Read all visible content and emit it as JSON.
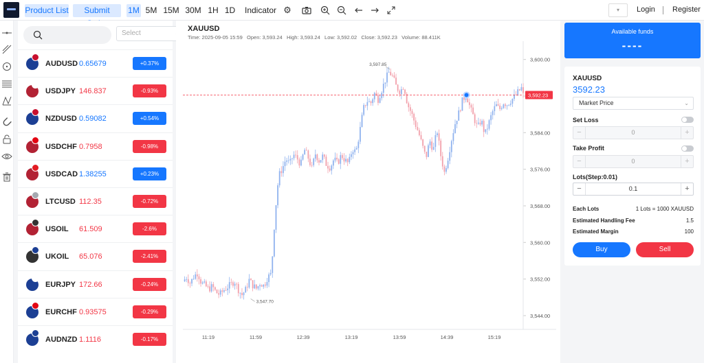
{
  "colors": {
    "accent": "#1677ff",
    "up": "#1677ff",
    "down": "#f23645",
    "up_candle": "#8fb2ee",
    "down_candle": "#f2a0ab",
    "price_line": "#f23645"
  },
  "toolbar": {
    "product_list": "Product List",
    "submit_order": "Submit Order",
    "intervals": [
      "1M",
      "5M",
      "15M",
      "30M",
      "1H",
      "1D"
    ],
    "active_interval": "1M",
    "indicator": "Indicator",
    "icons": [
      "settings-icon",
      "camera-icon",
      "zoom-in-icon",
      "zoom-out-icon",
      "arrow-left-icon",
      "arrow-right-icon",
      "fullscreen-icon"
    ],
    "login": "Login",
    "register": "Register"
  },
  "tools": [
    "horizontal-line-icon",
    "trend-line-icon",
    "circle-icon",
    "parallel-lines-icon",
    "pattern-icon",
    "magnet-icon",
    "lock-icon",
    "eye-icon",
    "trash-icon"
  ],
  "symbol_list": {
    "select_placeholder": "Select",
    "items": [
      {
        "symbol": "AUDUSD",
        "price": "0.65679",
        "change": "+0.37%",
        "dir": "up",
        "flag": [
          "#1c3f94",
          "#c8102e"
        ]
      },
      {
        "symbol": "USDJPY",
        "price": "146.837",
        "change": "-0.93%",
        "dir": "down",
        "flag": [
          "#b22234",
          "#ffffff"
        ]
      },
      {
        "symbol": "NZDUSD",
        "price": "0.59082",
        "change": "+0.54%",
        "dir": "up",
        "flag": [
          "#1c3f94",
          "#c8102e"
        ]
      },
      {
        "symbol": "USDCHF",
        "price": "0.7958",
        "change": "-0.98%",
        "dir": "down",
        "flag": [
          "#b22234",
          "#e30613"
        ]
      },
      {
        "symbol": "USDCAD",
        "price": "1.38255",
        "change": "+0.23%",
        "dir": "up",
        "flag": [
          "#b22234",
          "#e31b23"
        ]
      },
      {
        "symbol": "LTCUSD",
        "price": "112.35",
        "change": "-0.72%",
        "dir": "down",
        "flag": [
          "#b22234",
          "#a5a9b0"
        ]
      },
      {
        "symbol": "USOIL",
        "price": "61.509",
        "change": "-2.6%",
        "dir": "down",
        "flag": [
          "#b22234",
          "#333333"
        ]
      },
      {
        "symbol": "UKOIL",
        "price": "65.076",
        "change": "-2.41%",
        "dir": "down",
        "flag": [
          "#333333",
          "#1c3f94"
        ]
      },
      {
        "symbol": "EURJPY",
        "price": "172.66",
        "change": "-0.24%",
        "dir": "down",
        "flag": [
          "#1c3f94",
          "#ffffff"
        ]
      },
      {
        "symbol": "EURCHF",
        "price": "0.93575",
        "change": "-0.29%",
        "dir": "down",
        "flag": [
          "#1c3f94",
          "#e30613"
        ]
      },
      {
        "symbol": "AUDNZD",
        "price": "1.1116",
        "change": "-0.17%",
        "dir": "down",
        "flag": [
          "#1c3f94",
          "#1c3f94"
        ]
      }
    ]
  },
  "chart": {
    "symbol": "XAUUSD",
    "ohlc_line": "Time: 2025-09-05 15:59   Open: 3,593.24   High: 3,593.24   Low: 3,592.02   Close: 3,592.23   Volume: 88.411K",
    "current_price_label": "3,592.23",
    "max_label": "3,597.85",
    "min_label": "3,547.70"
  },
  "chart_data": {
    "type": "candlestick",
    "title": "XAUUSD",
    "x_ticks": [
      "11:19",
      "11:59",
      "12:39",
      "13:19",
      "13:59",
      "14:39",
      "15:19"
    ],
    "y_ticks": [
      3544,
      3552,
      3560,
      3568,
      3576,
      3584,
      3592,
      3600
    ],
    "y_tick_labels": [
      "3,544.00",
      "3,552.00",
      "3,560.00",
      "3,568.00",
      "3,576.00",
      "3,584.00",
      "3,592.00",
      "3,600.00"
    ],
    "ylim": [
      3542.5,
      3602.5
    ],
    "current_price": 3592.23,
    "max_point": {
      "value": 3597.85,
      "time": "13:58"
    },
    "min_point": {
      "value": 3547.7,
      "time": "11:48"
    },
    "close_path": [
      [
        0,
        3551.5
      ],
      [
        5,
        3552.4
      ],
      [
        10,
        3551.1
      ],
      [
        15,
        3552.6
      ],
      [
        20,
        3553.4
      ],
      [
        25,
        3551.2
      ],
      [
        30,
        3550.6
      ],
      [
        35,
        3549.8
      ],
      [
        40,
        3550.4
      ],
      [
        45,
        3549.1
      ],
      [
        50,
        3548.6
      ],
      [
        55,
        3549.5
      ],
      [
        60,
        3550.2
      ],
      [
        65,
        3550.8
      ],
      [
        70,
        3551.6
      ],
      [
        75,
        3549.8
      ],
      [
        80,
        3548.5
      ],
      [
        85,
        3549.6
      ],
      [
        90,
        3551.8
      ],
      [
        95,
        3550.6
      ],
      [
        100,
        3549.9
      ],
      [
        105,
        3551.2
      ],
      [
        110,
        3550.5
      ],
      [
        115,
        3552.4
      ],
      [
        120,
        3553.1
      ],
      [
        125,
        3566.0
      ],
      [
        130,
        3574.5
      ],
      [
        135,
        3576.2
      ],
      [
        140,
        3578.3
      ],
      [
        145,
        3577.1
      ],
      [
        150,
        3579.2
      ],
      [
        155,
        3578.4
      ],
      [
        160,
        3577.0
      ],
      [
        165,
        3580.3
      ],
      [
        170,
        3578.6
      ],
      [
        175,
        3576.2
      ],
      [
        180,
        3579.4
      ],
      [
        185,
        3577.8
      ],
      [
        190,
        3578.9
      ],
      [
        195,
        3577.0
      ],
      [
        200,
        3576.4
      ],
      [
        205,
        3578.2
      ],
      [
        210,
        3577.3
      ],
      [
        215,
        3579.1
      ],
      [
        220,
        3578.0
      ],
      [
        225,
        3577.2
      ],
      [
        230,
        3580.5
      ],
      [
        235,
        3579.7
      ],
      [
        240,
        3584.1
      ],
      [
        245,
        3589.2
      ],
      [
        250,
        3591.0
      ],
      [
        255,
        3590.4
      ],
      [
        260,
        3592.6
      ],
      [
        265,
        3591.3
      ],
      [
        270,
        3593.4
      ],
      [
        275,
        3595.6
      ],
      [
        280,
        3597.3
      ],
      [
        285,
        3596.2
      ],
      [
        290,
        3593.9
      ],
      [
        295,
        3593.0
      ],
      [
        300,
        3594.3
      ],
      [
        305,
        3590.2
      ],
      [
        310,
        3588.4
      ],
      [
        315,
        3586.1
      ],
      [
        320,
        3584.0
      ],
      [
        325,
        3581.2
      ],
      [
        330,
        3578.5
      ],
      [
        335,
        3582.3
      ],
      [
        340,
        3580.2
      ],
      [
        345,
        3584.6
      ],
      [
        350,
        3579.1
      ],
      [
        355,
        3575.3
      ],
      [
        360,
        3578.6
      ],
      [
        365,
        3582.8
      ],
      [
        370,
        3586.3
      ],
      [
        375,
        3588.5
      ],
      [
        380,
        3591.3
      ],
      [
        385,
        3592.2
      ],
      [
        390,
        3589.4
      ],
      [
        395,
        3587.3
      ],
      [
        400,
        3585.0
      ],
      [
        405,
        3586.8
      ],
      [
        410,
        3583.6
      ],
      [
        415,
        3585.9
      ],
      [
        420,
        3588.4
      ],
      [
        425,
        3590.0
      ],
      [
        430,
        3589.1
      ],
      [
        435,
        3590.6
      ],
      [
        440,
        3590.2
      ],
      [
        445,
        3591.0
      ],
      [
        450,
        3591.8
      ],
      [
        455,
        3592.9
      ],
      [
        460,
        3593.8
      ],
      [
        462,
        3592.2
      ]
    ]
  },
  "order": {
    "funds_label": "Available funds",
    "funds_value": "----",
    "symbol": "XAUUSD",
    "price": "3592.23",
    "order_type": "Market Price",
    "set_loss": "Set Loss",
    "set_loss_value": "0",
    "take_profit": "Take Profit",
    "take_profit_value": "0",
    "lots_label": "Lots(Step:0.01)",
    "lots_value": "0.1",
    "minus": "−",
    "plus": "+",
    "each_lots_label": "Each Lots",
    "each_lots_value": "1 Lots = 1000 XAUUSD",
    "fee_label": "Estimated Handling Fee",
    "fee_value": "1.5",
    "margin_label": "Estimated Margin",
    "margin_value": "100",
    "buy": "Buy",
    "sell": "Sell"
  }
}
